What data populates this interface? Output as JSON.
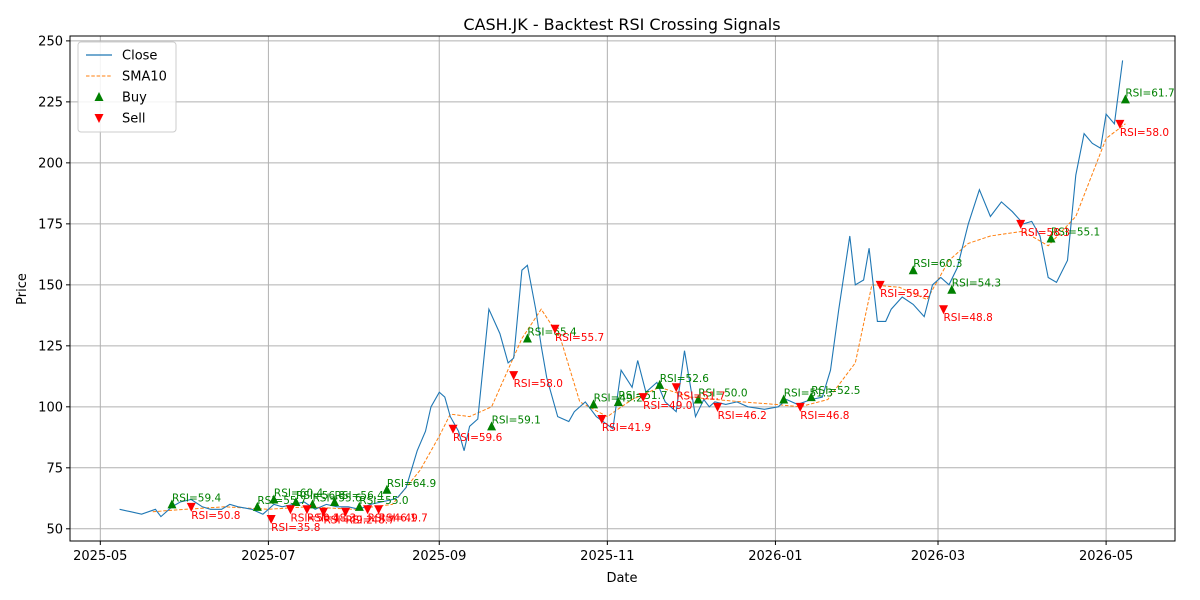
{
  "chart_data": {
    "type": "line",
    "title": "CASH.JK - Backtest RSI Crossing Signals",
    "xlabel": "Date",
    "ylabel": "Price",
    "xlim": [
      "2025-04-20",
      "2026-05-26"
    ],
    "ylim": [
      45,
      252
    ],
    "grid": true,
    "legend_position": "top-left",
    "x_ticks": [
      "2025-05",
      "2025-07",
      "2025-09",
      "2025-11",
      "2026-01",
      "2026-03",
      "2026-05"
    ],
    "y_ticks": [
      50,
      75,
      100,
      125,
      150,
      175,
      200,
      225,
      250
    ],
    "colors": {
      "close": "#1f77b4",
      "sma": "#ff7f0e",
      "buy": "#008000",
      "sell": "#ff0000",
      "grid": "#b0b0b0"
    },
    "legend": [
      {
        "label": "Close",
        "kind": "line"
      },
      {
        "label": "SMA10",
        "kind": "dashed"
      },
      {
        "label": "Buy",
        "kind": "triangle-up"
      },
      {
        "label": "Sell",
        "kind": "triangle-down"
      }
    ],
    "close": {
      "name": "Close",
      "x": [
        "2025-05-08",
        "2025-05-12",
        "2025-05-16",
        "2025-05-21",
        "2025-05-23",
        "2025-05-27",
        "2025-05-30",
        "2025-06-03",
        "2025-06-07",
        "2025-06-10",
        "2025-06-14",
        "2025-06-17",
        "2025-06-20",
        "2025-06-25",
        "2025-06-29",
        "2025-07-03",
        "2025-07-06",
        "2025-07-10",
        "2025-07-14",
        "2025-07-18",
        "2025-07-22",
        "2025-07-26",
        "2025-07-30",
        "2025-08-03",
        "2025-08-07",
        "2025-08-11",
        "2025-08-15",
        "2025-08-17",
        "2025-08-20",
        "2025-08-24",
        "2025-08-27",
        "2025-08-29",
        "2025-09-01",
        "2025-09-03",
        "2025-09-05",
        "2025-09-08",
        "2025-09-10",
        "2025-09-12",
        "2025-09-15",
        "2025-09-19",
        "2025-09-23",
        "2025-09-26",
        "2025-09-28",
        "2025-10-01",
        "2025-10-03",
        "2025-10-06",
        "2025-10-08",
        "2025-10-10",
        "2025-10-14",
        "2025-10-18",
        "2025-10-20",
        "2025-10-24",
        "2025-10-28",
        "2025-11-03",
        "2025-11-06",
        "2025-11-10",
        "2025-11-12",
        "2025-11-15",
        "2025-11-19",
        "2025-11-22",
        "2025-11-26",
        "2025-11-29",
        "2025-12-03",
        "2025-12-06",
        "2025-12-08",
        "2025-12-10",
        "2025-12-14",
        "2025-12-18",
        "2025-12-22",
        "2025-12-28",
        "2026-01-02",
        "2026-01-05",
        "2026-01-09",
        "2026-01-14",
        "2026-01-18",
        "2026-01-21",
        "2026-01-24",
        "2026-01-26",
        "2026-01-28",
        "2026-01-30",
        "2026-02-02",
        "2026-02-04",
        "2026-02-07",
        "2026-02-10",
        "2026-02-12",
        "2026-02-16",
        "2026-02-20",
        "2026-02-24",
        "2026-02-27",
        "2026-03-02",
        "2026-03-05",
        "2026-03-08",
        "2026-03-12",
        "2026-03-16",
        "2026-03-20",
        "2026-03-24",
        "2026-03-28",
        "2026-04-01",
        "2026-04-04",
        "2026-04-07",
        "2026-04-10",
        "2026-04-13",
        "2026-04-17",
        "2026-04-20",
        "2026-04-23",
        "2026-04-26",
        "2026-04-29",
        "2026-05-01",
        "2026-05-04",
        "2026-05-07"
      ],
      "y": [
        58,
        57,
        56,
        58,
        55,
        59,
        61,
        62,
        59,
        58,
        58,
        60,
        59,
        58,
        56,
        60,
        59,
        60,
        61,
        58,
        60,
        59,
        59,
        58,
        60,
        61,
        62,
        63,
        67,
        82,
        90,
        100,
        106,
        104,
        96,
        90,
        82,
        92,
        95,
        140,
        130,
        118,
        120,
        156,
        158,
        140,
        125,
        112,
        96,
        94,
        98,
        102,
        96,
        91,
        115,
        108,
        119,
        106,
        110,
        102,
        98,
        123,
        96,
        103,
        100,
        102,
        101,
        102,
        100,
        99,
        100,
        103,
        101,
        103,
        104,
        115,
        140,
        155,
        170,
        150,
        152,
        165,
        135,
        135,
        140,
        145,
        142,
        137,
        150,
        153,
        150,
        157,
        175,
        189,
        178,
        184,
        180,
        175,
        176,
        170,
        153,
        151,
        160,
        195,
        212,
        208,
        206,
        220,
        216,
        242
      ],
      "note": "Close series"
    },
    "sma10": {
      "name": "SMA10",
      "x": [
        "2025-05-20",
        "2025-06-01",
        "2025-06-15",
        "2025-07-01",
        "2025-07-15",
        "2025-08-01",
        "2025-08-15",
        "2025-08-25",
        "2025-09-01",
        "2025-09-05",
        "2025-09-12",
        "2025-09-20",
        "2025-10-01",
        "2025-10-08",
        "2025-10-15",
        "2025-10-22",
        "2025-11-01",
        "2025-11-10",
        "2025-11-20",
        "2025-12-01",
        "2025-12-10",
        "2025-12-20",
        "2026-01-01",
        "2026-01-10",
        "2026-01-20",
        "2026-01-30",
        "2026-02-05",
        "2026-02-15",
        "2026-02-25",
        "2026-03-05",
        "2026-03-12",
        "2026-03-20",
        "2026-04-01",
        "2026-04-10",
        "2026-04-20",
        "2026-05-01",
        "2026-05-08"
      ],
      "y": [
        57,
        58,
        59,
        58,
        59,
        58,
        60,
        74,
        88,
        97,
        96,
        100,
        128,
        140,
        128,
        102,
        96,
        103,
        108,
        104,
        103,
        102,
        101,
        100,
        103,
        118,
        150,
        149,
        144,
        160,
        167,
        170,
        172,
        166,
        178,
        210,
        216
      ]
    },
    "buys": [
      {
        "x": "2025-05-27",
        "y": 60,
        "label": "RSI=59.4"
      },
      {
        "x": "2025-06-27",
        "y": 59,
        "label": "RSI=55.7"
      },
      {
        "x": "2025-07-03",
        "y": 62,
        "label": "RSI=60.4"
      },
      {
        "x": "2025-07-11",
        "y": 61,
        "label": "RSI=56.8"
      },
      {
        "x": "2025-07-17",
        "y": 60,
        "label": "RSI=55.6"
      },
      {
        "x": "2025-07-25",
        "y": 61,
        "label": "RSI=56.4"
      },
      {
        "x": "2025-08-03",
        "y": 59,
        "label": "RSI=55.0"
      },
      {
        "x": "2025-08-13",
        "y": 66,
        "label": "RSI=64.9"
      },
      {
        "x": "2025-09-20",
        "y": 92,
        "label": "RSI=59.1"
      },
      {
        "x": "2025-10-03",
        "y": 128,
        "label": "RSI=65.4"
      },
      {
        "x": "2025-10-27",
        "y": 101,
        "label": "RSI=49.2"
      },
      {
        "x": "2025-11-05",
        "y": 102,
        "label": "RSI=51.7"
      },
      {
        "x": "2025-11-20",
        "y": 109,
        "label": "RSI=52.6"
      },
      {
        "x": "2025-12-04",
        "y": 103,
        "label": "RSI=50.0"
      },
      {
        "x": "2026-01-04",
        "y": 103,
        "label": "RSI=51.3"
      },
      {
        "x": "2026-01-14",
        "y": 104,
        "label": "RSI=52.5"
      },
      {
        "x": "2026-02-20",
        "y": 156,
        "label": "RSI=60.3"
      },
      {
        "x": "2026-03-06",
        "y": 148,
        "label": "RSI=54.3"
      },
      {
        "x": "2026-04-11",
        "y": 169,
        "label": "RSI=55.1"
      },
      {
        "x": "2026-05-08",
        "y": 226,
        "label": "RSI=61.7"
      }
    ],
    "sells": [
      {
        "x": "2025-06-03",
        "y": 59,
        "label": "RSI=50.8"
      },
      {
        "x": "2025-07-02",
        "y": 54,
        "label": "RSI=35.8"
      },
      {
        "x": "2025-07-09",
        "y": 58,
        "label": "RSI=50.1"
      },
      {
        "x": "2025-07-15",
        "y": 58,
        "label": "RSI=48.3"
      },
      {
        "x": "2025-07-21",
        "y": 57,
        "label": "RSI=49.2"
      },
      {
        "x": "2025-07-29",
        "y": 57,
        "label": "RSI=48.7"
      },
      {
        "x": "2025-08-06",
        "y": 58,
        "label": "RSI=46.1"
      },
      {
        "x": "2025-08-10",
        "y": 58,
        "label": "RSI=49.7"
      },
      {
        "x": "2025-09-06",
        "y": 91,
        "label": "RSI=59.6"
      },
      {
        "x": "2025-09-28",
        "y": 113,
        "label": "RSI=58.0"
      },
      {
        "x": "2025-10-13",
        "y": 132,
        "label": "RSI=55.7"
      },
      {
        "x": "2025-10-30",
        "y": 95,
        "label": "RSI=41.9"
      },
      {
        "x": "2025-11-14",
        "y": 104,
        "label": "RSI=49.0"
      },
      {
        "x": "2025-11-26",
        "y": 108,
        "label": "RSI=51.7"
      },
      {
        "x": "2025-12-11",
        "y": 100,
        "label": "RSI=46.2"
      },
      {
        "x": "2026-01-10",
        "y": 100,
        "label": "RSI=46.8"
      },
      {
        "x": "2026-02-08",
        "y": 150,
        "label": "RSI=59.2"
      },
      {
        "x": "2026-03-03",
        "y": 140,
        "label": "RSI=48.8"
      },
      {
        "x": "2026-03-31",
        "y": 175,
        "label": "RSI=58.3"
      },
      {
        "x": "2026-05-06",
        "y": 216,
        "label": "RSI=58.0"
      }
    ]
  }
}
